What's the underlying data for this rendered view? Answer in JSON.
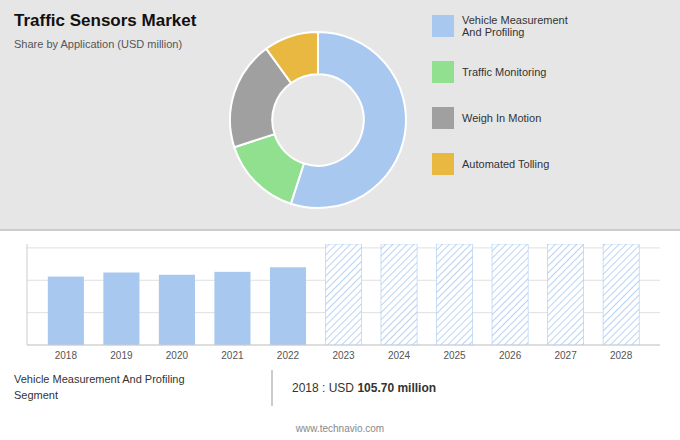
{
  "chart_data": [
    {
      "type": "donut",
      "title": "Traffic Sensors Market",
      "subtitle": "Share by Application (USD million)",
      "categories": [
        "Vehicle Measurement\nAnd Profiling",
        "Traffic Monitoring",
        "Weigh In Motion",
        "Automated Tolling"
      ],
      "values": [
        55,
        15,
        20,
        10
      ],
      "colors": [
        "#a8c8f0",
        "#90e090",
        "#a0a0a0",
        "#e8b840"
      ],
      "legend": "right"
    },
    {
      "type": "bar",
      "categories": [
        "2018",
        "2019",
        "2020",
        "2021",
        "2022",
        "2023",
        "2024",
        "2025",
        "2026",
        "2027",
        "2028"
      ],
      "series": [
        {
          "color": "#a8c8f0",
          "values": [
            105.7,
            112.0,
            108.5,
            113.0,
            120.0,
            null,
            null,
            null,
            null,
            null,
            null
          ]
        },
        {
          "color": "#a8c8f0",
          "line_style": "hatched",
          "values": [
            null,
            null,
            null,
            null,
            null,
            156,
            156,
            156,
            156,
            156,
            156
          ]
        }
      ],
      "ylim": [
        0,
        156
      ],
      "yticks": [
        0,
        50,
        100,
        150
      ],
      "grid": true,
      "tick_labels": "x",
      "annotations": [
        "Vehicle Measurement And Profiling",
        "Segment",
        "2018 : USD ",
        "105.70 million",
        "www.technavio.com"
      ]
    }
  ]
}
